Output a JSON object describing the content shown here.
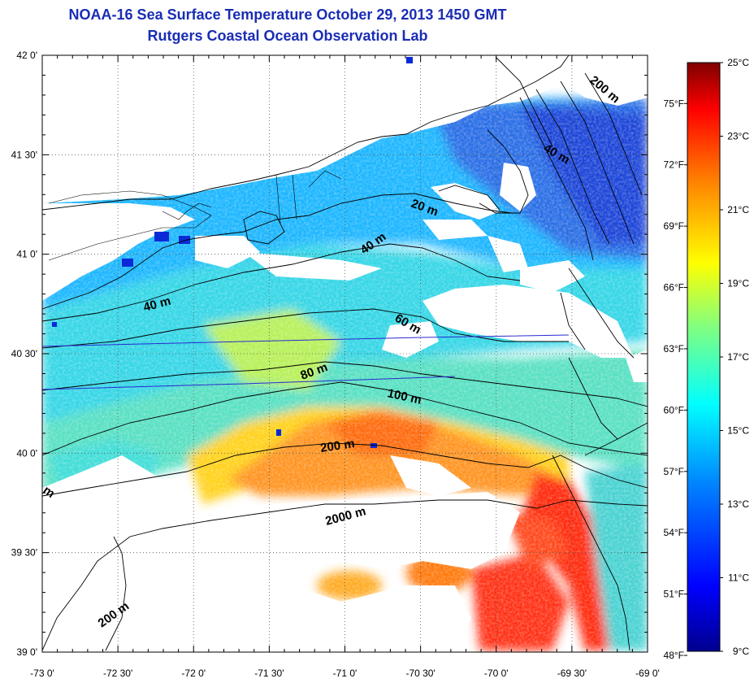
{
  "title": "NOAA-16 Sea Surface Temperature October 29, 2013 1450 GMT",
  "subtitle": "Rutgers Coastal Ocean Observation Lab",
  "map": {
    "lon_ticks": [
      "-73 0'",
      "-72 30'",
      "-72 0'",
      "-71 30'",
      "-71 0'",
      "-70 30'",
      "-70 0'",
      "-69 30'",
      "-69 0'"
    ],
    "lat_ticks": [
      "42 0'",
      "41 30'",
      "41 0'",
      "40 30'",
      "40 0'",
      "39 30'",
      "39 0'"
    ],
    "lon_range": [
      -73,
      -69
    ],
    "lat_range": [
      39,
      42
    ],
    "grid": true,
    "contour_labels": [
      "200 m",
      "40 m",
      "20 m",
      "40 m",
      "40 m",
      "60 m",
      "80 m",
      "100 m",
      "200 m",
      "2000 m",
      "200 m",
      "m"
    ],
    "colors": {
      "land": "#ffffff",
      "cloud": "#ffffff",
      "coastline": "#000000",
      "transect": "#2a2ad0"
    }
  },
  "colorbar": {
    "celsius_labels": [
      "25°C",
      "23°C",
      "21°C",
      "19°C",
      "17°C",
      "15°C",
      "13°C",
      "11°C",
      "9°C"
    ],
    "fahrenheit_labels": [
      "75°F",
      "72°F",
      "69°F",
      "66°F",
      "63°F",
      "60°F",
      "57°F",
      "54°F",
      "51°F",
      "48°F"
    ],
    "celsius_range": [
      9,
      25
    ],
    "colors": [
      "#00008f",
      "#0000ff",
      "#0080ff",
      "#00ffff",
      "#80ff80",
      "#ffff00",
      "#ff8000",
      "#ff0000",
      "#800000"
    ]
  }
}
